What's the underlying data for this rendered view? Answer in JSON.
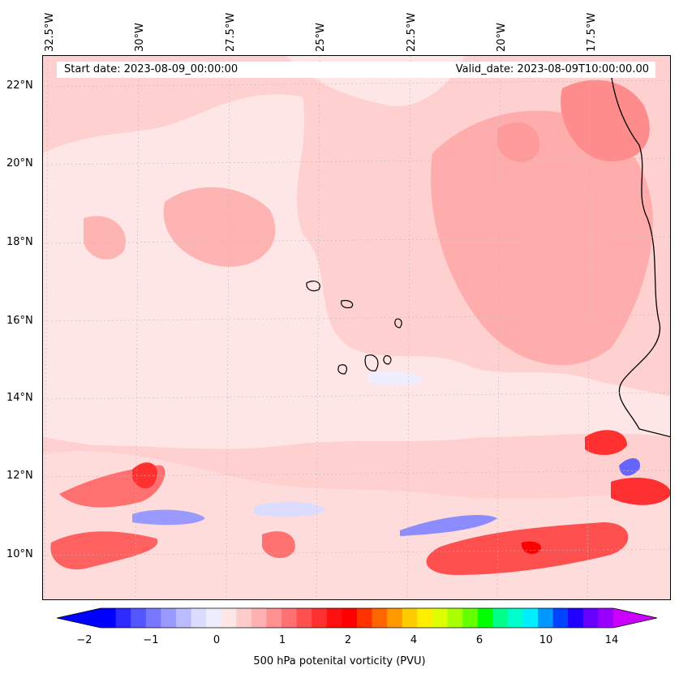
{
  "map": {
    "longitude_labels": [
      "32.5°W",
      "30°W",
      "27.5°W",
      "25°W",
      "22.5°W",
      "20°W",
      "17.5°W"
    ],
    "latitude_labels": [
      "22°N",
      "20°N",
      "18°N",
      "16°N",
      "14°N",
      "12°N",
      "10°N"
    ],
    "start_date_text": "Start date: 2023-08-09_00:00:00",
    "valid_date_text": "Valid_date: 2023-08-09T10:00:00.00",
    "field": "500 hPa potenital vorticity (PVU)",
    "colors": {
      "background_pv": "#ffd0d0",
      "low_pv": "#ffe6e6",
      "moderate_pv": "#ffa6a6",
      "high_pv": "#ff3030",
      "negative_pv": "#8c8cff",
      "coastline": "#000000"
    }
  },
  "colorbar": {
    "tick_labels": [
      "−2",
      "−1",
      "0",
      "1",
      "2",
      "4",
      "6",
      "10",
      "14"
    ],
    "label": "500 hPa potenital vorticity (PVU)",
    "colors": [
      "#0000ff",
      "#2b2bff",
      "#5555ff",
      "#7777ff",
      "#9999ff",
      "#bbbbff",
      "#dcdcff",
      "#eeeeff",
      "#ffe6e6",
      "#ffcccc",
      "#ffb0b0",
      "#ff9090",
      "#ff7070",
      "#ff5050",
      "#ff3030",
      "#ff1010",
      "#ff0000",
      "#ff3300",
      "#ff6600",
      "#ff9900",
      "#ffcc00",
      "#ffee00",
      "#ddff00",
      "#aaff00",
      "#66ff00",
      "#00ff00",
      "#00ff88",
      "#00ffcc",
      "#00eeff",
      "#0099ff",
      "#0044ff",
      "#2200ff",
      "#6600ff",
      "#9900ff"
    ],
    "extend_left_color": "#0000ff",
    "extend_right_color": "#cc00ff"
  }
}
